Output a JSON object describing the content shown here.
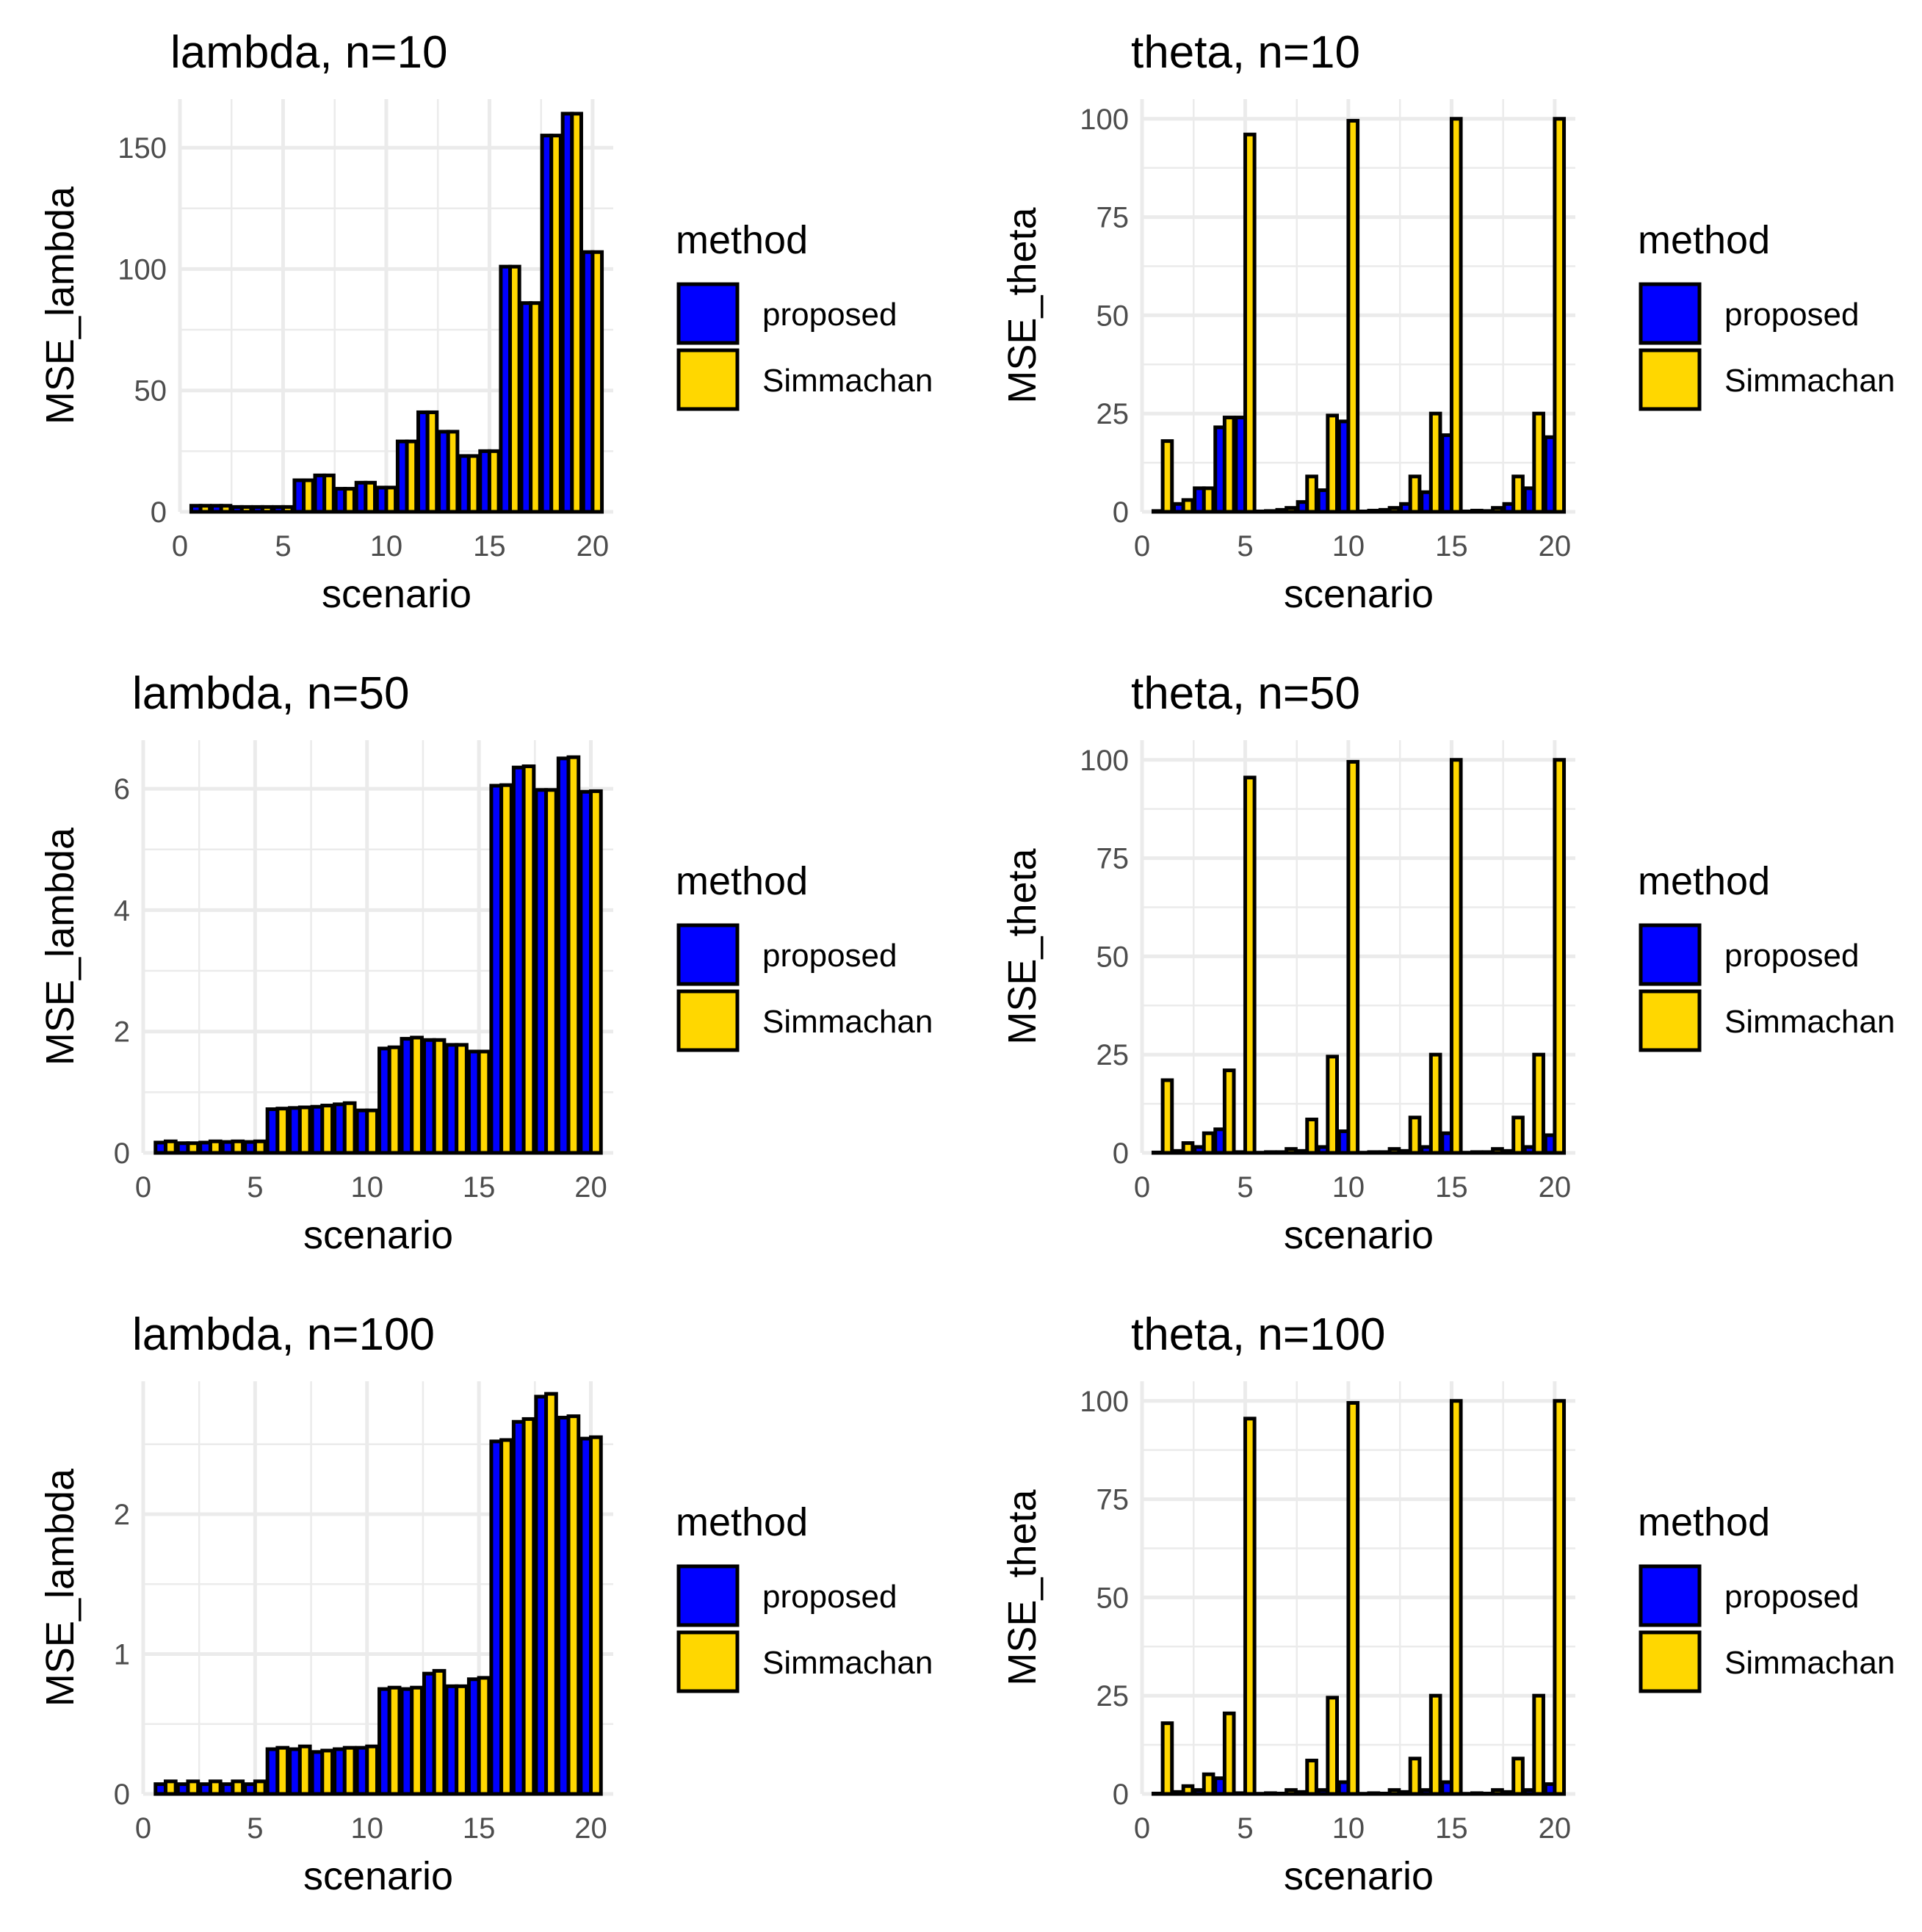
{
  "colors": {
    "proposed": "#0000FF",
    "Simmachan": "#FFD700",
    "grid": "#EBEBEB"
  },
  "chart_data": [
    {
      "type": "bar",
      "title": "lambda, n=10",
      "xlabel": "scenario",
      "ylabel": "MSE_lambda",
      "xlim": [
        0,
        21
      ],
      "ylim": [
        0,
        170
      ],
      "xticks": [
        0,
        5,
        10,
        15,
        20
      ],
      "yticks": [
        0,
        50,
        100,
        150
      ],
      "x": [
        1,
        2,
        3,
        4,
        5,
        6,
        7,
        8,
        9,
        10,
        11,
        12,
        13,
        14,
        15,
        16,
        17,
        18,
        19,
        20
      ],
      "legend": {
        "title": "method",
        "position": "right"
      },
      "series": [
        {
          "name": "proposed",
          "values": [
            2.5,
            2.5,
            2,
            2,
            2,
            13,
            15,
            9.5,
            12,
            10,
            29,
            41,
            33,
            23,
            25,
            101,
            86,
            155,
            164,
            107
          ]
        },
        {
          "name": "Simmachan",
          "values": [
            2.5,
            2.5,
            2,
            2,
            2,
            13,
            15,
            9.5,
            12,
            10,
            29,
            41,
            33,
            23,
            25,
            101,
            86,
            155,
            164,
            107
          ]
        }
      ]
    },
    {
      "type": "bar",
      "title": "theta, n=10",
      "xlabel": "scenario",
      "ylabel": "MSE_theta",
      "xlim": [
        0,
        21
      ],
      "ylim": [
        0,
        105
      ],
      "xticks": [
        0,
        5,
        10,
        15,
        20
      ],
      "yticks": [
        0,
        25,
        50,
        75,
        100
      ],
      "x": [
        1,
        2,
        3,
        4,
        5,
        6,
        7,
        8,
        9,
        10,
        11,
        12,
        13,
        14,
        15,
        16,
        17,
        18,
        19,
        20
      ],
      "legend": {
        "title": "method",
        "position": "right"
      },
      "series": [
        {
          "name": "proposed",
          "values": [
            0.2,
            2,
            6,
            21.5,
            24,
            0.1,
            0.5,
            2.5,
            5.5,
            23,
            0.1,
            0.5,
            2,
            5,
            19.5,
            0.1,
            0.2,
            2,
            6,
            19
          ]
        },
        {
          "name": "Simmachan",
          "values": [
            18,
            3,
            6,
            24,
            96,
            0.2,
            1,
            9,
            24.5,
            99.5,
            0.3,
            1,
            9,
            25,
            100,
            0.3,
            1,
            9,
            25,
            100
          ]
        }
      ]
    },
    {
      "type": "bar",
      "title": "lambda, n=50",
      "xlabel": "scenario",
      "ylabel": "MSE_lambda",
      "xlim": [
        0,
        21
      ],
      "ylim": [
        0,
        6.8
      ],
      "xticks": [
        0,
        5,
        10,
        15,
        20
      ],
      "yticks": [
        0,
        2,
        4,
        6
      ],
      "x": [
        1,
        2,
        3,
        4,
        5,
        6,
        7,
        8,
        9,
        10,
        11,
        12,
        13,
        14,
        15,
        16,
        17,
        18,
        19,
        20
      ],
      "legend": {
        "title": "method",
        "position": "right"
      },
      "series": [
        {
          "name": "proposed",
          "values": [
            0.17,
            0.16,
            0.17,
            0.18,
            0.18,
            0.72,
            0.74,
            0.76,
            0.8,
            0.7,
            1.72,
            1.88,
            1.86,
            1.78,
            1.67,
            6.05,
            6.35,
            5.98,
            6.5,
            5.95
          ]
        },
        {
          "name": "Simmachan",
          "values": [
            0.19,
            0.16,
            0.19,
            0.19,
            0.19,
            0.73,
            0.75,
            0.78,
            0.82,
            0.7,
            1.74,
            1.9,
            1.86,
            1.78,
            1.67,
            6.06,
            6.37,
            5.98,
            6.52,
            5.96
          ]
        }
      ]
    },
    {
      "type": "bar",
      "title": "theta, n=50",
      "xlabel": "scenario",
      "ylabel": "MSE_theta",
      "xlim": [
        0,
        21
      ],
      "ylim": [
        0,
        105
      ],
      "xticks": [
        0,
        5,
        10,
        15,
        20
      ],
      "yticks": [
        0,
        25,
        50,
        75,
        100
      ],
      "x": [
        1,
        2,
        3,
        4,
        5,
        6,
        7,
        8,
        9,
        10,
        11,
        12,
        13,
        14,
        15,
        16,
        17,
        18,
        19,
        20
      ],
      "legend": {
        "title": "method",
        "position": "right"
      },
      "series": [
        {
          "name": "proposed",
          "values": [
            0.1,
            0.5,
            1.5,
            6,
            0.2,
            0.05,
            0.2,
            0.5,
            1.5,
            5.5,
            0.05,
            0.2,
            0.5,
            1.5,
            5,
            0.05,
            0.2,
            0.5,
            1.5,
            4.5
          ]
        },
        {
          "name": "Simmachan",
          "values": [
            18.5,
            2.5,
            5,
            21,
            95.5,
            0.2,
            1,
            8.5,
            24.5,
            99.5,
            0.2,
            1,
            9,
            25,
            100,
            0.2,
            1,
            9,
            25,
            100
          ]
        }
      ]
    },
    {
      "type": "bar",
      "title": "lambda, n=100",
      "xlabel": "scenario",
      "ylabel": "MSE_lambda",
      "xlim": [
        0,
        21
      ],
      "ylim": [
        0,
        2.95
      ],
      "xticks": [
        0,
        5,
        10,
        15,
        20
      ],
      "yticks": [
        0,
        1,
        2
      ],
      "x": [
        1,
        2,
        3,
        4,
        5,
        6,
        7,
        8,
        9,
        10,
        11,
        12,
        13,
        14,
        15,
        16,
        17,
        18,
        19,
        20
      ],
      "legend": {
        "title": "method",
        "position": "right"
      },
      "series": [
        {
          "name": "proposed",
          "values": [
            0.07,
            0.07,
            0.07,
            0.07,
            0.07,
            0.32,
            0.32,
            0.3,
            0.32,
            0.33,
            0.75,
            0.75,
            0.86,
            0.77,
            0.82,
            2.52,
            2.66,
            2.84,
            2.69,
            2.54
          ]
        },
        {
          "name": "Simmachan",
          "values": [
            0.09,
            0.09,
            0.09,
            0.09,
            0.09,
            0.33,
            0.34,
            0.31,
            0.33,
            0.34,
            0.76,
            0.76,
            0.88,
            0.77,
            0.83,
            2.53,
            2.68,
            2.86,
            2.7,
            2.55
          ]
        }
      ]
    },
    {
      "type": "bar",
      "title": "theta, n=100",
      "xlabel": "scenario",
      "ylabel": "MSE_theta",
      "xlim": [
        0,
        21
      ],
      "ylim": [
        0,
        105
      ],
      "xticks": [
        0,
        5,
        10,
        15,
        20
      ],
      "yticks": [
        0,
        25,
        50,
        75,
        100
      ],
      "x": [
        1,
        2,
        3,
        4,
        5,
        6,
        7,
        8,
        9,
        10,
        11,
        12,
        13,
        14,
        15,
        16,
        17,
        18,
        19,
        20
      ],
      "legend": {
        "title": "method",
        "position": "right"
      },
      "series": [
        {
          "name": "proposed",
          "values": [
            0.1,
            0.5,
            1,
            4,
            0.2,
            0.05,
            0.1,
            0.5,
            1,
            3,
            0.05,
            0.1,
            0.5,
            1,
            3,
            0.05,
            0.1,
            0.5,
            1,
            2.5
          ]
        },
        {
          "name": "Simmachan",
          "values": [
            18,
            2,
            5,
            20.5,
            95.5,
            0.2,
            1,
            8.5,
            24.5,
            99.5,
            0.2,
            1,
            9,
            25,
            100,
            0.2,
            1,
            9,
            25,
            100
          ]
        }
      ]
    }
  ]
}
